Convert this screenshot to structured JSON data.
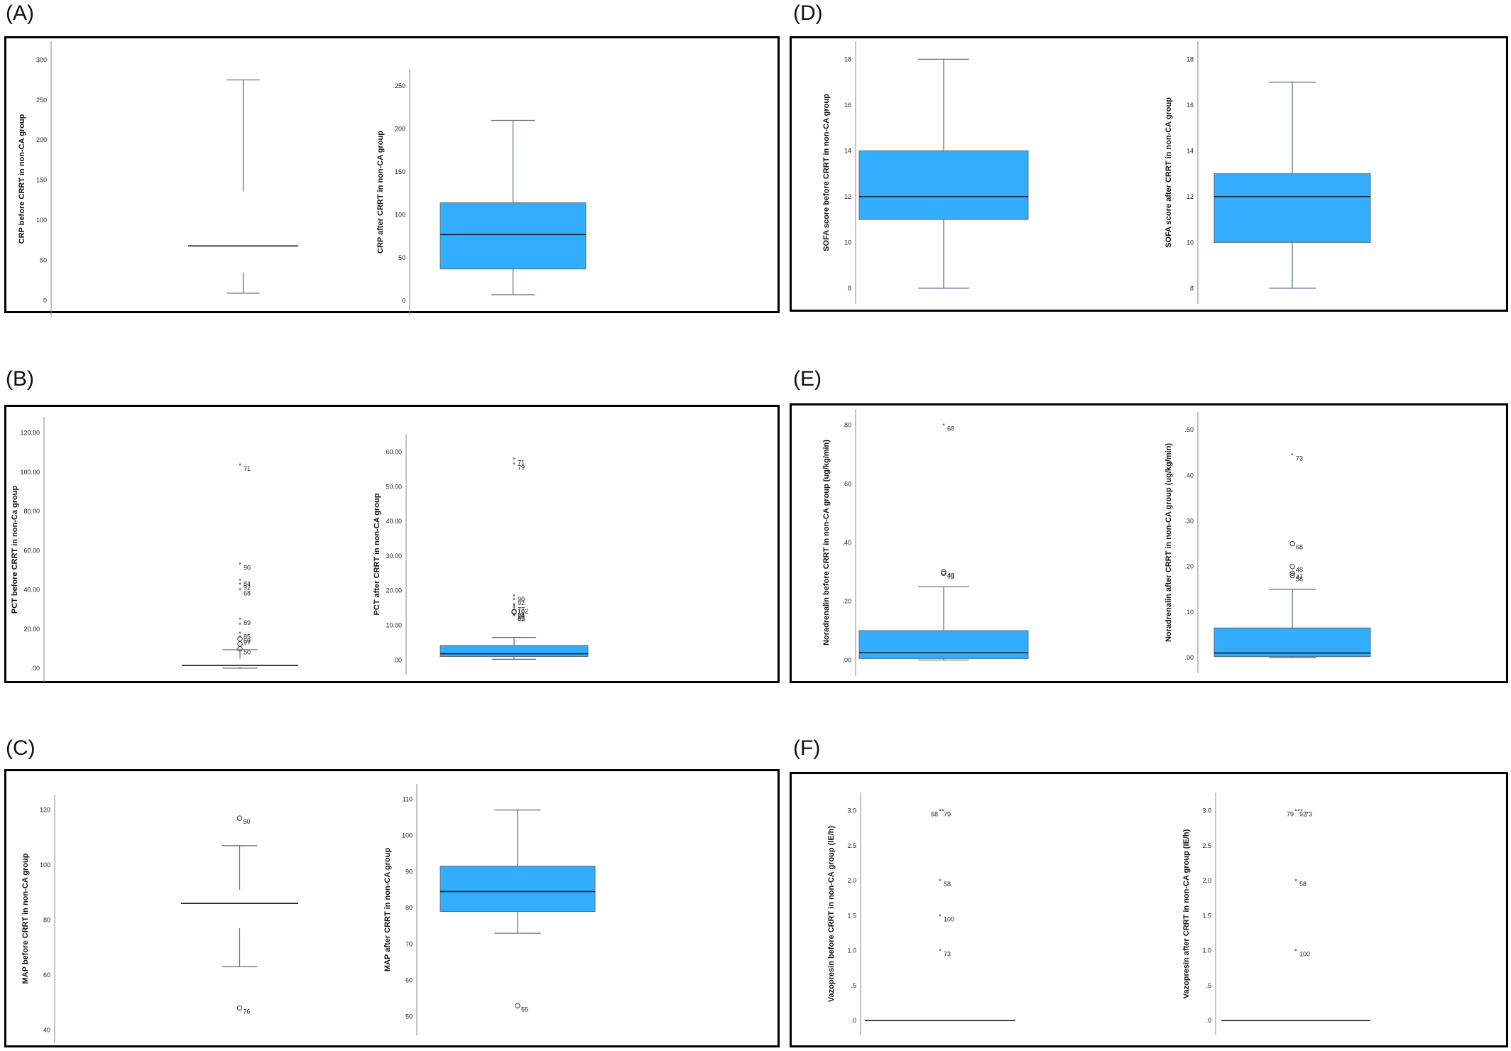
{
  "panels": [
    {
      "letter": "(A)"
    },
    {
      "letter": "(B)"
    },
    {
      "letter": "(C)"
    },
    {
      "letter": "(D)"
    },
    {
      "letter": "(E)"
    },
    {
      "letter": "(F)"
    }
  ],
  "colors": {
    "box_fill": "#33adff",
    "box_stroke": "#5a6b7a",
    "axis": "#888888",
    "frame": "#000000"
  },
  "chart_data": [
    {
      "panel": "(A)",
      "type": "boxplot",
      "ylabel": "CRP before CRRT in non-CA group",
      "ylim": [
        -15,
        318
      ],
      "ticks": [
        0,
        50,
        100,
        150,
        200,
        250,
        300
      ],
      "tick_labels": [
        "0",
        "50",
        "100",
        "150",
        "200",
        "250",
        "300"
      ],
      "min": 9,
      "q1": 35,
      "median": 68,
      "q3": 136,
      "max": 275,
      "outliers": []
    },
    {
      "panel": "(A)",
      "type": "boxplot",
      "ylabel": "CRP after CRRT in non-CA group",
      "ylim": [
        -12,
        265
      ],
      "ticks": [
        0,
        50,
        100,
        150,
        200,
        250
      ],
      "tick_labels": [
        "0",
        "50",
        "100",
        "150",
        "200",
        "250"
      ],
      "min": 7,
      "q1": 37,
      "median": 77,
      "q3": 114,
      "max": 210,
      "outliers": []
    },
    {
      "panel": "(B)",
      "type": "boxplot",
      "ylabel": "PCT before CRRT in non-Ca group",
      "ylim": [
        -5,
        126
      ],
      "ticks": [
        0,
        20,
        40,
        60,
        80,
        100,
        120
      ],
      "tick_labels": [
        ".00",
        "20.00",
        "40.00",
        "60.00",
        "80.00",
        "100.00",
        "120.00"
      ],
      "min": 0.1,
      "q1": 0.8,
      "median": 1.5,
      "q3": 5,
      "max": 9.5,
      "outliers": [
        {
          "value": 103.5,
          "label": "71",
          "marker": "*"
        },
        {
          "value": 53,
          "label": "90",
          "marker": "*"
        },
        {
          "value": 45,
          "label": "84",
          "marker": "*"
        },
        {
          "value": 43,
          "label": "92",
          "marker": "*"
        },
        {
          "value": 40,
          "label": "68",
          "marker": "*"
        },
        {
          "value": 25,
          "label": "69",
          "marker": "*"
        },
        {
          "value": 22.5,
          "label": "",
          "marker": "*"
        },
        {
          "value": 18,
          "label": "85",
          "marker": "*"
        },
        {
          "value": 16,
          "label": "60",
          "marker": "*"
        },
        {
          "value": 15,
          "label": "97",
          "marker": "o"
        },
        {
          "value": 12.5,
          "label": "",
          "marker": "o"
        },
        {
          "value": 10,
          "label": "50",
          "marker": "o"
        }
      ]
    },
    {
      "panel": "(B)",
      "type": "boxplot",
      "ylabel": "PCT after CRRT in non-CA group",
      "ylim": [
        -3,
        64
      ],
      "ticks": [
        0,
        10,
        20,
        30,
        40,
        50,
        60
      ],
      "tick_labels": [
        ".00",
        "10.00",
        "20.00",
        "30.00",
        "40.00",
        "50.00",
        "60.00"
      ],
      "min": 0.2,
      "q1": 1,
      "median": 1.8,
      "q3": 4.2,
      "max": 6.5,
      "outliers": [
        {
          "value": 58,
          "label": "71",
          "marker": "*"
        },
        {
          "value": 56.5,
          "label": "79",
          "marker": "*"
        },
        {
          "value": 18.5,
          "label": "90",
          "marker": "*"
        },
        {
          "value": 17.5,
          "label": "92",
          "marker": "*"
        },
        {
          "value": 16,
          "label": "",
          "marker": "*"
        },
        {
          "value": 15.5,
          "label": "77",
          "marker": "*"
        },
        {
          "value": 15,
          "label": "102",
          "marker": "*"
        },
        {
          "value": 14,
          "label": "68",
          "marker": "o"
        },
        {
          "value": 13.8,
          "label": "94",
          "marker": "o"
        },
        {
          "value": 13,
          "label": "69",
          "marker": "*"
        },
        {
          "value": 12.8,
          "label": "85",
          "marker": "*"
        }
      ]
    },
    {
      "panel": "(C)",
      "type": "boxplot",
      "ylabel": "MAP before CRRT in non-CA group",
      "ylim": [
        37,
        124
      ],
      "ticks": [
        40,
        60,
        80,
        100,
        120
      ],
      "tick_labels": [
        "40",
        "60",
        "80",
        "100",
        "120"
      ],
      "min": 63,
      "q1": 77,
      "median": 86,
      "q3": 91,
      "max": 107,
      "outliers": [
        {
          "value": 117,
          "label": "50",
          "marker": "o"
        },
        {
          "value": 48,
          "label": "76",
          "marker": "o"
        }
      ]
    },
    {
      "panel": "(C)",
      "type": "boxplot",
      "ylabel": "MAP after CRRT in non-CA group",
      "ylim": [
        46,
        113
      ],
      "ticks": [
        50,
        60,
        70,
        80,
        90,
        100,
        110
      ],
      "tick_labels": [
        "50",
        "60",
        "70",
        "80",
        "90",
        "100",
        "110"
      ],
      "min": 73,
      "q1": 79,
      "median": 84.5,
      "q3": 91.5,
      "max": 107,
      "outliers": [
        {
          "value": 53,
          "label": "55",
          "marker": "o"
        }
      ]
    },
    {
      "panel": "(D)",
      "type": "boxplot",
      "ylabel": "SOFA score before CRRT in non-CA group",
      "ylim": [
        7.5,
        18.6
      ],
      "ticks": [
        8,
        10,
        12,
        14,
        16,
        18
      ],
      "tick_labels": [
        "8",
        "10",
        "12",
        "14",
        "16",
        "18"
      ],
      "min": 8,
      "q1": 11,
      "median": 12,
      "q3": 14,
      "max": 18,
      "outliers": []
    },
    {
      "panel": "(D)",
      "type": "boxplot",
      "ylabel": "SOFA score after CRRT in non-CA group",
      "ylim": [
        7.5,
        18.6
      ],
      "ticks": [
        8,
        10,
        12,
        14,
        16,
        18
      ],
      "tick_labels": [
        "8",
        "10",
        "12",
        "14",
        "16",
        "18"
      ],
      "min": 8,
      "q1": 10,
      "median": 12,
      "q3": 13,
      "max": 17,
      "outliers": []
    },
    {
      "panel": "(E)",
      "type": "boxplot",
      "ylabel": "Noradrenalin before CRRT in non-CA group (ug/kg/min)",
      "ylim": [
        -0.04,
        0.84
      ],
      "ticks": [
        0,
        0.2,
        0.4,
        0.6,
        0.8
      ],
      "tick_labels": [
        ".00",
        ".20",
        ".40",
        ".60",
        ".80"
      ],
      "min": 0.0,
      "q1": 0.005,
      "median": 0.025,
      "q3": 0.1,
      "max": 0.25,
      "outliers": [
        {
          "value": 0.8,
          "label": "68",
          "marker": "*"
        },
        {
          "value": 0.3,
          "label": "48",
          "marker": "o"
        },
        {
          "value": 0.295,
          "label": "73",
          "marker": "o"
        }
      ]
    },
    {
      "panel": "(E)",
      "type": "boxplot",
      "ylabel": "Noradrenalin after CRRT in non-CA group (ug/kg/min)",
      "ylim": [
        -0.025,
        0.53
      ],
      "ticks": [
        0,
        0.1,
        0.2,
        0.3,
        0.4,
        0.5
      ],
      "tick_labels": [
        ".00",
        ".10",
        ".20",
        ".30",
        ".40",
        ".50"
      ],
      "min": 0.0,
      "q1": 0.002,
      "median": 0.01,
      "q3": 0.065,
      "max": 0.15,
      "outliers": [
        {
          "value": 0.445,
          "label": "73",
          "marker": "*"
        },
        {
          "value": 0.25,
          "label": "68",
          "marker": "o"
        },
        {
          "value": 0.2,
          "label": "48",
          "marker": "o"
        },
        {
          "value": 0.185,
          "label": "47",
          "marker": "o"
        },
        {
          "value": 0.18,
          "label": "58",
          "marker": "o"
        }
      ]
    },
    {
      "panel": "(F)",
      "type": "boxplot",
      "ylabel": "Vazopresin before CRRT in non-CA group (IE/h)",
      "ylim": [
        -0.15,
        3.2
      ],
      "ticks": [
        0,
        0.5,
        1,
        1.5,
        2,
        2.5,
        3
      ],
      "tick_labels": [
        ".0",
        ".5",
        "1.0",
        "1.5",
        "2.0",
        "2.5",
        "3.0"
      ],
      "min": 0,
      "q1": 0,
      "median": 0,
      "q3": 0,
      "max": 0,
      "outliers": [
        {
          "value": 3.0,
          "label": "79",
          "marker": "*"
        },
        {
          "value": 3.0,
          "label": "68",
          "marker": "*"
        },
        {
          "value": 2.0,
          "label": "58",
          "marker": "*"
        },
        {
          "value": 1.5,
          "label": "100",
          "marker": "*"
        },
        {
          "value": 1.0,
          "label": "73",
          "marker": "*"
        }
      ]
    },
    {
      "panel": "(F)",
      "type": "boxplot",
      "ylabel": "Vazopresin after CRRT in non-CA group (IE/h)",
      "ylim": [
        -0.15,
        3.2
      ],
      "ticks": [
        0,
        0.5,
        1,
        1.5,
        2,
        2.5,
        3
      ],
      "tick_labels": [
        ".0",
        ".5",
        "1.0",
        "1.5",
        "2.0",
        "2.5",
        "3.0"
      ],
      "min": 0,
      "q1": 0,
      "median": 0,
      "q3": 0,
      "max": 0,
      "outliers": [
        {
          "value": 3.0,
          "label": "92",
          "marker": "*"
        },
        {
          "value": 3.0,
          "label": "79",
          "marker": "*"
        },
        {
          "value": 3.0,
          "label": "73",
          "marker": "*"
        },
        {
          "value": 2.0,
          "label": "58",
          "marker": "*"
        },
        {
          "value": 1.0,
          "label": "100",
          "marker": "*"
        }
      ]
    }
  ]
}
